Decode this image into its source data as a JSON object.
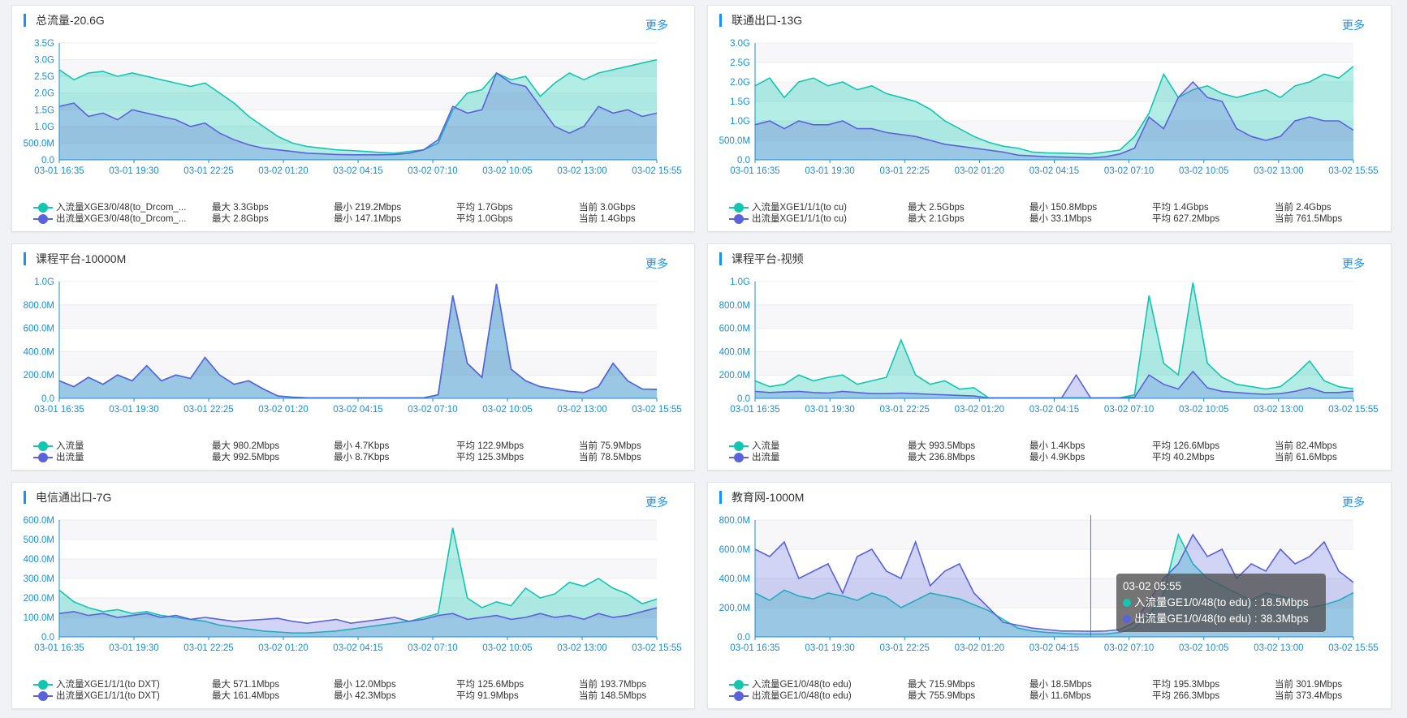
{
  "colors": {
    "in": "#12c6b0",
    "out": "#5b63dc",
    "accent": "#1890ff",
    "axis": "#1a8fd6"
  },
  "x_ticks": [
    "03-01 16:35",
    "03-01 19:30",
    "03-01 22:25",
    "03-02 01:20",
    "03-02 04:15",
    "03-02 07:10",
    "03-02 10:05",
    "03-02 13:00",
    "03-02 15:55"
  ],
  "panels": [
    {
      "title": "总流量-20.6G",
      "more_label": "更多",
      "y_ticks": [
        "0.0",
        "500.0M",
        "1.0G",
        "1.5G",
        "2.0G",
        "2.5G",
        "3.0G",
        "3.5G"
      ],
      "chart_data": {
        "type": "area",
        "ylim": [
          0,
          3.5
        ],
        "series": [
          {
            "name": "入流量XGE3/0/48(to_Drcom_...",
            "values": [
              2.7,
              2.4,
              2.6,
              2.65,
              2.5,
              2.6,
              2.5,
              2.4,
              2.3,
              2.2,
              2.3,
              2.0,
              1.7,
              1.3,
              1.0,
              0.7,
              0.5,
              0.4,
              0.35,
              0.3,
              0.28,
              0.25,
              0.22,
              0.2,
              0.25,
              0.3,
              0.5,
              1.5,
              2.0,
              2.1,
              2.6,
              2.4,
              2.5,
              1.9,
              2.3,
              2.6,
              2.4,
              2.6,
              2.7,
              2.8,
              2.9,
              3.0
            ]
          },
          {
            "name": "出流量XGE3/0/48(to_Drcom_...",
            "values": [
              1.6,
              1.7,
              1.3,
              1.4,
              1.2,
              1.5,
              1.4,
              1.3,
              1.2,
              1.0,
              1.1,
              0.8,
              0.6,
              0.45,
              0.35,
              0.3,
              0.25,
              0.2,
              0.18,
              0.16,
              0.15,
              0.15,
              0.15,
              0.16,
              0.2,
              0.3,
              0.6,
              1.6,
              1.4,
              1.5,
              2.6,
              2.3,
              2.2,
              1.6,
              1.0,
              0.8,
              1.0,
              1.6,
              1.4,
              1.5,
              1.3,
              1.4
            ]
          }
        ]
      },
      "legend": [
        {
          "name": "入流量XGE3/0/48(to_Drcom_...",
          "max": "最大 3.3Gbps",
          "min": "最小 219.2Mbps",
          "avg": "平均 1.7Gbps",
          "cur": "当前 3.0Gbps"
        },
        {
          "name": "出流量XGE3/0/48(to_Drcom_...",
          "max": "最大 2.8Gbps",
          "min": "最小 147.1Mbps",
          "avg": "平均 1.0Gbps",
          "cur": "当前 1.4Gbps"
        }
      ]
    },
    {
      "title": "联通出口-13G",
      "more_label": "更多",
      "y_ticks": [
        "0.0",
        "500.0M",
        "1.0G",
        "1.5G",
        "2.0G",
        "2.5G",
        "3.0G"
      ],
      "chart_data": {
        "type": "area",
        "ylim": [
          0,
          3.0
        ],
        "series": [
          {
            "name": "入流量XGE1/1/1(to cu)",
            "values": [
              1.9,
              2.1,
              1.6,
              2.0,
              2.1,
              1.9,
              2.0,
              1.8,
              1.9,
              1.7,
              1.6,
              1.5,
              1.3,
              1.0,
              0.8,
              0.6,
              0.45,
              0.35,
              0.3,
              0.2,
              0.18,
              0.17,
              0.16,
              0.15,
              0.2,
              0.25,
              0.6,
              1.2,
              2.2,
              1.6,
              1.8,
              1.9,
              1.7,
              1.6,
              1.7,
              1.8,
              1.6,
              1.9,
              2.0,
              2.2,
              2.1,
              2.4
            ]
          },
          {
            "name": "出流量XGE1/1/1(to cu)",
            "values": [
              0.9,
              1.0,
              0.8,
              1.0,
              0.9,
              0.9,
              1.0,
              0.8,
              0.8,
              0.7,
              0.65,
              0.6,
              0.5,
              0.4,
              0.35,
              0.3,
              0.25,
              0.2,
              0.12,
              0.1,
              0.08,
              0.07,
              0.06,
              0.05,
              0.08,
              0.15,
              0.3,
              1.1,
              0.8,
              1.6,
              2.0,
              1.6,
              1.5,
              0.8,
              0.6,
              0.5,
              0.6,
              1.0,
              1.1,
              1.0,
              1.0,
              0.76
            ]
          }
        ]
      },
      "legend": [
        {
          "name": "入流量XGE1/1/1(to cu)",
          "max": "最大 2.5Gbps",
          "min": "最小 150.8Mbps",
          "avg": "平均 1.4Gbps",
          "cur": "当前 2.4Gbps"
        },
        {
          "name": "出流量XGE1/1/1(to cu)",
          "max": "最大 2.1Gbps",
          "min": "最小 33.1Mbps",
          "avg": "平均 627.2Mbps",
          "cur": "当前 761.5Mbps"
        }
      ]
    },
    {
      "title": "课程平台-10000M",
      "more_label": "更多",
      "y_ticks": [
        "0.0",
        "200.0M",
        "400.0M",
        "600.0M",
        "800.0M",
        "1.0G"
      ],
      "chart_data": {
        "type": "area",
        "ylim": [
          0,
          1000
        ],
        "series": [
          {
            "name": "入流量",
            "values": [
              150,
              100,
              180,
              120,
              200,
              150,
              280,
              150,
              200,
              170,
              350,
              200,
              120,
              150,
              80,
              20,
              10,
              5,
              5,
              5,
              5,
              5,
              5,
              5,
              5,
              5,
              30,
              880,
              300,
              180,
              980,
              250,
              150,
              100,
              80,
              60,
              50,
              100,
              300,
              150,
              80,
              75
            ]
          },
          {
            "name": "出流量",
            "values": [
              150,
              100,
              180,
              120,
              200,
              150,
              280,
              150,
              200,
              170,
              350,
              200,
              120,
              150,
              80,
              20,
              10,
              5,
              5,
              5,
              5,
              5,
              5,
              5,
              5,
              5,
              30,
              880,
              300,
              180,
              980,
              250,
              150,
              100,
              80,
              60,
              50,
              100,
              300,
              150,
              80,
              78
            ]
          }
        ]
      },
      "legend": [
        {
          "name": "入流量",
          "max": "最大 980.2Mbps",
          "min": "最小 4.7Kbps",
          "avg": "平均 122.9Mbps",
          "cur": "当前 75.9Mbps"
        },
        {
          "name": "出流量",
          "max": "最大 992.5Mbps",
          "min": "最小 8.7Kbps",
          "avg": "平均 125.3Mbps",
          "cur": "当前 78.5Mbps"
        }
      ]
    },
    {
      "title": "课程平台-视频",
      "more_label": "更多",
      "y_ticks": [
        "0.0",
        "200.0M",
        "400.0M",
        "600.0M",
        "800.0M",
        "1.0G"
      ],
      "chart_data": {
        "type": "area",
        "ylim": [
          0,
          1000
        ],
        "series": [
          {
            "name": "入流量",
            "values": [
              150,
              100,
              120,
              200,
              150,
              180,
              200,
              120,
              150,
              180,
              500,
              200,
              120,
              150,
              80,
              90,
              5,
              5,
              5,
              5,
              5,
              5,
              5,
              5,
              5,
              5,
              30,
              880,
              300,
              200,
              990,
              300,
              180,
              120,
              100,
              80,
              100,
              200,
              320,
              150,
              100,
              82
            ]
          },
          {
            "name": "出流量",
            "values": [
              60,
              50,
              55,
              60,
              50,
              45,
              60,
              50,
              40,
              40,
              45,
              40,
              35,
              30,
              25,
              20,
              3,
              3,
              3,
              3,
              3,
              3,
              200,
              3,
              3,
              3,
              10,
              200,
              120,
              80,
              230,
              90,
              60,
              50,
              40,
              35,
              40,
              60,
              90,
              50,
              50,
              62
            ]
          }
        ]
      },
      "legend": [
        {
          "name": "入流量",
          "max": "最大 993.5Mbps",
          "min": "最小 1.4Kbps",
          "avg": "平均 126.6Mbps",
          "cur": "当前 82.4Mbps"
        },
        {
          "name": "出流量",
          "max": "最大 236.8Mbps",
          "min": "最小 4.9Kbps",
          "avg": "平均 40.2Mbps",
          "cur": "当前 61.6Mbps"
        }
      ]
    },
    {
      "title": "电信通出口-7G",
      "more_label": "更多",
      "y_ticks": [
        "0.0",
        "100.0M",
        "200.0M",
        "300.0M",
        "400.0M",
        "500.0M",
        "600.0M"
      ],
      "chart_data": {
        "type": "area",
        "ylim": [
          0,
          600
        ],
        "series": [
          {
            "name": "入流量XGE1/1/1(to DXT)",
            "values": [
              240,
              180,
              150,
              130,
              140,
              120,
              130,
              110,
              100,
              90,
              80,
              60,
              50,
              40,
              30,
              25,
              20,
              20,
              25,
              30,
              40,
              50,
              60,
              70,
              80,
              100,
              120,
              560,
              200,
              150,
              180,
              160,
              250,
              200,
              220,
              280,
              260,
              300,
              250,
              220,
              170,
              194
            ]
          },
          {
            "name": "出流量XGE1/1/1(to DXT)",
            "values": [
              120,
              130,
              110,
              120,
              100,
              110,
              120,
              100,
              110,
              90,
              100,
              90,
              80,
              85,
              90,
              95,
              80,
              70,
              80,
              90,
              70,
              80,
              90,
              100,
              80,
              90,
              110,
              120,
              90,
              100,
              110,
              90,
              100,
              120,
              100,
              110,
              90,
              120,
              100,
              110,
              130,
              149
            ]
          }
        ]
      },
      "legend": [
        {
          "name": "入流量XGE1/1/1(to DXT)",
          "max": "最大 571.1Mbps",
          "min": "最小 12.0Mbps",
          "avg": "平均 125.6Mbps",
          "cur": "当前 193.7Mbps"
        },
        {
          "name": "出流量XGE1/1/1(to DXT)",
          "max": "最大 161.4Mbps",
          "min": "最小 42.3Mbps",
          "avg": "平均 91.9Mbps",
          "cur": "当前 148.5Mbps"
        }
      ]
    },
    {
      "title": "教育网-1000M",
      "more_label": "更多",
      "y_ticks": [
        "0.0",
        "200.0M",
        "400.0M",
        "600.0M",
        "800.0M"
      ],
      "chart_data": {
        "type": "area",
        "ylim": [
          0,
          800
        ],
        "series": [
          {
            "name": "入流量GE1/0/48(to edu)",
            "values": [
              300,
              250,
              320,
              280,
              260,
              300,
              280,
              250,
              300,
              270,
              200,
              250,
              300,
              280,
              260,
              220,
              180,
              120,
              60,
              40,
              30,
              25,
              20,
              20,
              20,
              30,
              60,
              150,
              300,
              700,
              500,
              400,
              350,
              300,
              250,
              300,
              280,
              250,
              200,
              220,
              250,
              302
            ]
          },
          {
            "name": "出流量GE1/0/48(to edu)",
            "values": [
              600,
              550,
              650,
              400,
              450,
              500,
              300,
              550,
              600,
              450,
              400,
              650,
              350,
              450,
              500,
              300,
              200,
              100,
              80,
              60,
              50,
              40,
              40,
              38,
              40,
              50,
              100,
              250,
              400,
              500,
              700,
              550,
              600,
              400,
              500,
              450,
              600,
              500,
              550,
              650,
              450,
              373
            ]
          }
        ]
      },
      "legend": [
        {
          "name": "入流量GE1/0/48(to edu)",
          "max": "最大 715.9Mbps",
          "min": "最小 18.5Mbps",
          "avg": "平均 195.3Mbps",
          "cur": "当前 301.9Mbps"
        },
        {
          "name": "出流量GE1/0/48(to edu)",
          "max": "最大 755.9Mbps",
          "min": "最小 11.6Mbps",
          "avg": "平均 266.3Mbps",
          "cur": "当前 373.4Mbps"
        }
      ],
      "tooltip": {
        "time": "03-02 05:55",
        "in_text": "入流量GE1/0/48(to edu) : 18.5Mbps",
        "out_text": "出流量GE1/0/48(to edu) : 38.3Mbps",
        "x_index": 23
      }
    }
  ]
}
